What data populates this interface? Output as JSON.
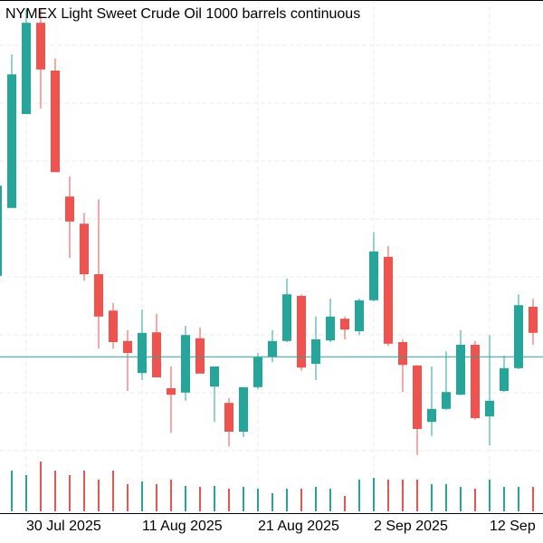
{
  "chart_data": {
    "type": "candlestick",
    "title": "NYMEX Light Sweet Crude Oil 1000 barrels continuous",
    "categories": [
      null,
      null,
      "30 Jul 2025",
      null,
      null,
      null,
      null,
      null,
      null,
      null,
      "11 Aug 2025",
      null,
      null,
      null,
      null,
      null,
      null,
      null,
      "21 Aug 2025",
      null,
      null,
      null,
      null,
      null,
      null,
      null,
      "2 Sep 2025",
      null,
      null,
      null,
      null,
      null,
      null,
      null,
      "12 Sep",
      null,
      null,
      null
    ],
    "open": [
      66.92,
      68.17,
      69.9,
      71.58,
      70.7,
      68.38,
      67.88,
      66.95,
      66.28,
      65.72,
      65.13,
      65.88,
      64.85,
      64.77,
      65.77,
      64.88,
      64.58,
      64.05,
      64.87,
      65.43,
      65.72,
      66.55,
      65.3,
      65.73,
      66.13,
      65.9,
      66.47,
      67.27,
      65.7,
      65.27,
      64.23,
      64.47,
      64.73,
      65.65,
      64.33,
      64.8,
      65.22,
      66.35
    ],
    "high": [
      68.67,
      71.0,
      71.83,
      71.83,
      70.92,
      68.75,
      68.08,
      68.33,
      66.42,
      65.92,
      66.3,
      66.22,
      65.25,
      66.0,
      65.97,
      65.25,
      64.67,
      64.87,
      65.5,
      65.92,
      66.87,
      66.58,
      66.17,
      66.5,
      66.17,
      66.5,
      67.72,
      67.47,
      65.75,
      65.27,
      65.25,
      65.53,
      65.92,
      65.72,
      65.83,
      65.45,
      66.58,
      66.5
    ],
    "low": [
      66.83,
      68.17,
      69.9,
      70.0,
      68.83,
      67.25,
      66.83,
      65.58,
      65.58,
      64.8,
      65.0,
      65.05,
      64.03,
      64.62,
      65.12,
      64.23,
      63.78,
      63.95,
      64.83,
      65.33,
      65.7,
      65.17,
      65.0,
      65.7,
      65.75,
      65.83,
      66.45,
      65.63,
      64.78,
      63.62,
      63.97,
      64.45,
      64.72,
      64.27,
      63.8,
      64.78,
      65.2,
      65.65
    ],
    "close": [
      68.58,
      70.63,
      71.58,
      70.72,
      68.83,
      67.92,
      66.95,
      66.17,
      65.7,
      65.5,
      65.87,
      65.05,
      64.73,
      65.83,
      65.12,
      65.25,
      64.05,
      64.87,
      65.42,
      65.72,
      66.58,
      65.23,
      65.75,
      66.17,
      65.93,
      66.47,
      67.37,
      65.67,
      65.28,
      64.1,
      64.47,
      64.78,
      65.65,
      64.3,
      64.62,
      65.22,
      66.38,
      65.87
    ],
    "volume": [
      40,
      45,
      40,
      55,
      45,
      40,
      45,
      35,
      45,
      30,
      33,
      30,
      35,
      28,
      27,
      28,
      25,
      27,
      25,
      20,
      25,
      25,
      27,
      25,
      17,
      35,
      37,
      35,
      35,
      35,
      30,
      30,
      27,
      25,
      35,
      27,
      27,
      27
    ],
    "ylim": [
      63.5,
      72
    ],
    "vlim": [
      0,
      60
    ],
    "up_color": "#26a69a",
    "down_color": "#ef5350",
    "price_line": 65.43,
    "price_line_color": "#26a69a",
    "grid": true
  }
}
